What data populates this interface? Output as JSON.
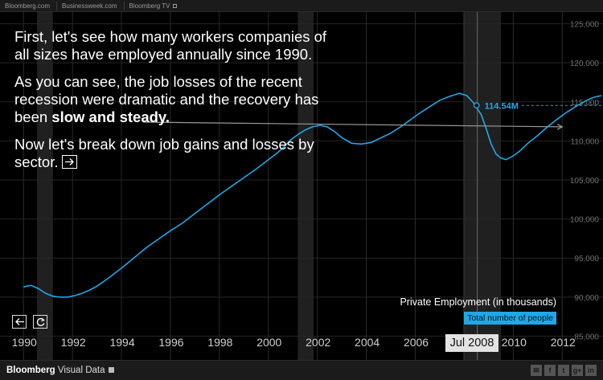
{
  "topbar": {
    "links": [
      "Bloomberg.com",
      "Businessweek.com",
      "Bloomberg TV"
    ]
  },
  "narrative": {
    "p1": "First, let's see how many workers companies of all sizes have employed annually since 1990.",
    "p2_before": "As you can see, the job losses of the recent recession were dramatic and the recovery has been ",
    "p2_bold": "slow and steady.",
    "p3": "Now let's break down job gains and losses by sector."
  },
  "controls": {
    "next_icon": "arrow-right-icon",
    "back_icon": "arrow-left-icon",
    "replay_icon": "replay-icon"
  },
  "legend": {
    "title": "Private Employment (in thousands)",
    "tag": "Total number of people"
  },
  "hover": {
    "date_label": "Jul 2008",
    "value_label": "114.54M",
    "date": 2008.5,
    "value": 114540
  },
  "footer": {
    "brand_bold": "Bloomberg",
    "brand_rest": " Visual Data",
    "social": [
      "email-icon",
      "facebook-icon",
      "twitter-icon",
      "google-plus-icon",
      "linkedin-icon"
    ]
  },
  "colors": {
    "line": "#1fa8e6",
    "recession_band": "#3a3a3a",
    "annotation_arrow": "#9a9a9a"
  },
  "chart_data": {
    "type": "line",
    "title": "Private Employment (in thousands)",
    "series": [
      {
        "name": "Total number of people",
        "x": [
          1990.0,
          1990.3,
          1990.6,
          1990.9,
          1991.2,
          1991.5,
          1991.8,
          1992.1,
          1992.4,
          1992.7,
          1993.0,
          1993.5,
          1994.0,
          1994.5,
          1995.0,
          1995.5,
          1996.0,
          1996.5,
          1997.0,
          1997.5,
          1998.0,
          1998.5,
          1999.0,
          1999.5,
          2000.0,
          2000.3,
          2000.6,
          2000.9,
          2001.2,
          2001.5,
          2001.8,
          2002.1,
          2002.4,
          2002.7,
          2003.0,
          2003.4,
          2003.8,
          2004.2,
          2004.6,
          2005.0,
          2005.4,
          2005.8,
          2006.2,
          2006.6,
          2007.0,
          2007.4,
          2007.8,
          2008.1,
          2008.4,
          2008.7,
          2008.9,
          2009.1,
          2009.3,
          2009.5,
          2009.7,
          2009.9,
          2010.1,
          2010.3,
          2010.6,
          2011.0,
          2011.4,
          2011.8,
          2012.2,
          2012.6,
          2013.0,
          2013.3,
          2013.6
        ],
        "values": [
          91300,
          91500,
          91100,
          90500,
          90100,
          90000,
          90000,
          90200,
          90500,
          90900,
          91400,
          92500,
          93700,
          95000,
          96300,
          97400,
          98500,
          99500,
          100700,
          101900,
          103100,
          104200,
          105300,
          106400,
          107600,
          108300,
          109100,
          110100,
          110800,
          111400,
          111800,
          112000,
          111800,
          111200,
          110400,
          109700,
          109600,
          109800,
          110400,
          111000,
          111800,
          112700,
          113600,
          114400,
          115200,
          115700,
          116100,
          115800,
          114800,
          113300,
          111500,
          109600,
          108300,
          107800,
          107600,
          107900,
          108300,
          108800,
          109700,
          110700,
          111800,
          112800,
          113700,
          114500,
          115200,
          115600,
          115800
        ]
      }
    ],
    "xlim": [
      1989.5,
      2013.6
    ],
    "ylim": [
      83500,
      126500
    ],
    "x_ticks": [
      1990,
      1992,
      1994,
      1996,
      1998,
      2000,
      2002,
      2004,
      2006,
      2008,
      2010,
      2012
    ],
    "x_tick_labels": [
      "1990",
      "1992",
      "1994",
      "1996",
      "1998",
      "2000",
      "2002",
      "2004",
      "2006",
      "2008",
      "2010",
      "2012"
    ],
    "y_ticks": [
      85000,
      90000,
      95000,
      100000,
      105000,
      110000,
      115000,
      120000,
      125000
    ],
    "y_tick_labels": [
      "85,000",
      "90,000",
      "95,000",
      "100,000",
      "105,000",
      "110,000",
      "115,000",
      "120,000",
      "125,000"
    ],
    "recessions": [
      [
        1990.55,
        1991.2
      ],
      [
        2001.2,
        2001.85
      ],
      [
        2007.95,
        2009.5
      ]
    ],
    "annotation_arrow": {
      "from": [
        2000.0,
        112100
      ],
      "to": [
        2012.0,
        111800
      ]
    },
    "grid": true,
    "legend": "bottom-right"
  }
}
